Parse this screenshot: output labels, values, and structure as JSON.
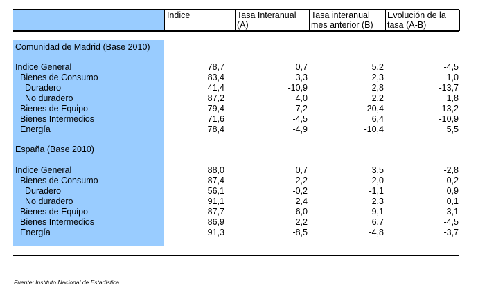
{
  "header": {
    "col1": "Indice",
    "col2_line1": "Tasa Interanual",
    "col2_line2": "(A)",
    "col3_line1": "Tasa interanual",
    "col3_line2": "mes anterior (B)",
    "col4_line1": "Evolución de la",
    "col4_line2": "tasa (A-B)"
  },
  "sections": [
    {
      "title": "Comunidad de Madrid (Base 2010)",
      "rows": [
        {
          "label": "Indice General",
          "indice": "78,7",
          "tasa": "0,7",
          "tasa_ant": "5,2",
          "evol": "-4,5"
        },
        {
          "label": "Bienes de Consumo",
          "indice": "83,4",
          "tasa": "3,3",
          "tasa_ant": "2,3",
          "evol": "1,0"
        },
        {
          "label": "Duradero",
          "indice": "41,4",
          "tasa": "-10,9",
          "tasa_ant": "2,8",
          "evol": "-13,7"
        },
        {
          "label": "No duradero",
          "indice": "87,2",
          "tasa": "4,0",
          "tasa_ant": "2,2",
          "evol": "1,8"
        },
        {
          "label": "Bienes de Equipo",
          "indice": "79,4",
          "tasa": "7,2",
          "tasa_ant": "20,4",
          "evol": "-13,2"
        },
        {
          "label": "Bienes Intermedios",
          "indice": "71,6",
          "tasa": "-4,5",
          "tasa_ant": "6,4",
          "evol": "-10,9"
        },
        {
          "label": "Energía",
          "indice": "78,4",
          "tasa": "-4,9",
          "tasa_ant": "-10,4",
          "evol": "5,5"
        }
      ]
    },
    {
      "title": "España (Base 2010)",
      "rows": [
        {
          "label": "Indice General",
          "indice": "88,0",
          "tasa": "0,7",
          "tasa_ant": "3,5",
          "evol": "-2,8"
        },
        {
          "label": "Bienes de Consumo",
          "indice": "87,4",
          "tasa": "2,2",
          "tasa_ant": "2,0",
          "evol": "0,2"
        },
        {
          "label": "Duradero",
          "indice": "56,1",
          "tasa": "-0,2",
          "tasa_ant": "-1,1",
          "evol": "0,9"
        },
        {
          "label": "No duradero",
          "indice": "91,1",
          "tasa": "2,4",
          "tasa_ant": "2,3",
          "evol": "0,1"
        },
        {
          "label": "Bienes de Equipo",
          "indice": "87,7",
          "tasa": "6,0",
          "tasa_ant": "9,1",
          "evol": "-3,1"
        },
        {
          "label": "Bienes Intermedios",
          "indice": "86,9",
          "tasa": "2,2",
          "tasa_ant": "6,7",
          "evol": "-4,5"
        },
        {
          "label": "Energía",
          "indice": "91,3",
          "tasa": "-8,5",
          "tasa_ant": "-4,8",
          "evol": "-3,7"
        }
      ]
    }
  ],
  "source": "Fuente: Instituto Nacional de Estadística",
  "colors": {
    "label_column": "#99ccff",
    "rules": "#000000"
  }
}
